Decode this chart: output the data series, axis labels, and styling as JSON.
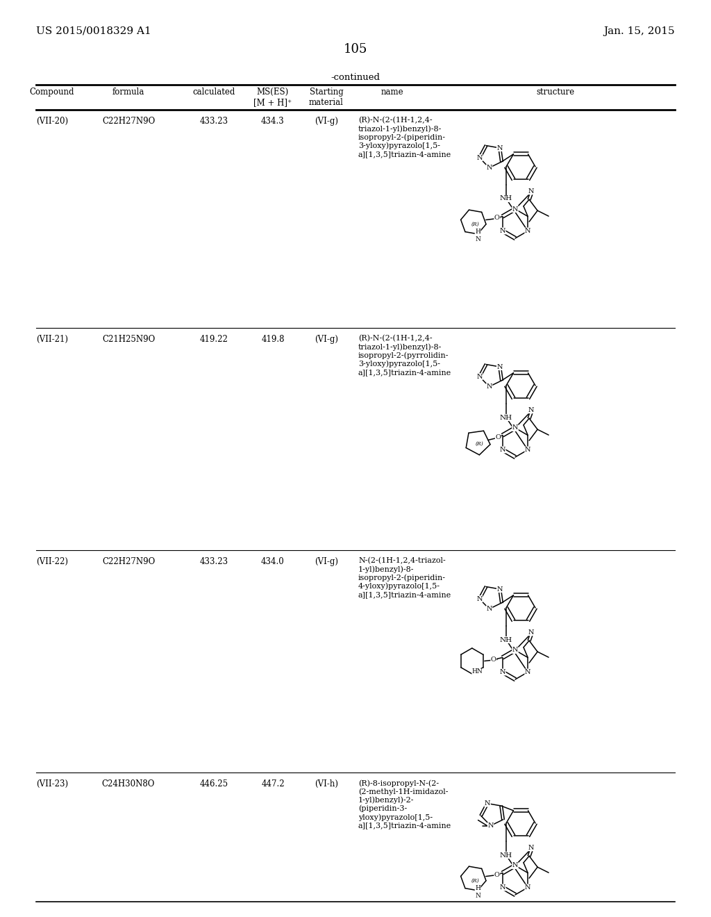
{
  "page_header_left": "US 2015/0018329 A1",
  "page_header_right": "Jan. 15, 2015",
  "page_number": "105",
  "table_header": "-continued",
  "col_headers": [
    "Compound",
    "formula",
    "calculated",
    "MS(ES)\n[M + H]+",
    "Starting\nmaterial",
    "name",
    "structure"
  ],
  "rows": [
    {
      "compound": "(VII-20)",
      "formula": "C22H27N9O",
      "calculated": "433.23",
      "ms": "434.3",
      "starting": "(VI-g)",
      "name": "(R)-N-(2-(1H-1,2,4-\ntriazol-1-yl)benzyl)-8-\nisopropyl-2-(piperidin-\n3-yloxy)pyrazolo[1,5-\na][1,3,5]triazin-4-amine"
    },
    {
      "compound": "(VII-21)",
      "formula": "C21H25N9O",
      "calculated": "419.22",
      "ms": "419.8",
      "starting": "(VI-g)",
      "name": "(R)-N-(2-(1H-1,2,4-\ntriazol-1-yl)benzyl)-8-\nisopropyl-2-(pyrrolidin-\n3-yloxy)pyrazolo[1,5-\na][1,3,5]triazin-4-amine"
    },
    {
      "compound": "(VII-22)",
      "formula": "C22H27N9O",
      "calculated": "433.23",
      "ms": "434.0",
      "starting": "(VI-g)",
      "name": "N-(2-(1H-1,2,4-triazol-\n1-yl)benzyl)-8-\nisopropyl-2-(piperidin-\n4-yloxy)pyrazolo[1,5-\na][1,3,5]triazin-4-amine"
    },
    {
      "compound": "(VII-23)",
      "formula": "C24H30N8O",
      "calculated": "446.25",
      "ms": "447.2",
      "starting": "(VI-h)",
      "name": "(R)-8-isopropyl-N-(2-\n(2-methyl-1H-imidazol-\n1-yl)benzyl)-2-\n(piperidin-3-\nyloxy)pyrazolo[1,5-\na][1,3,5]triazin-4-amine"
    }
  ],
  "bg_color": "#ffffff",
  "text_color": "#000000",
  "line_color": "#000000"
}
